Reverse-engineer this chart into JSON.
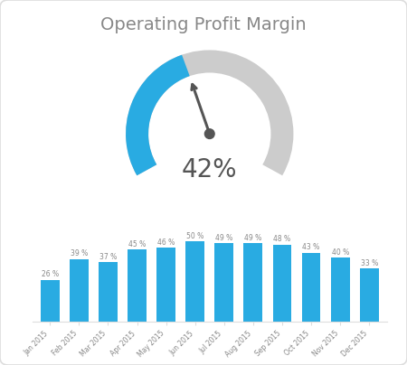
{
  "title": "Operating Profit Margin",
  "gauge_value": 42,
  "gauge_label": "42%",
  "gauge_color_filled": "#29ABE2",
  "gauge_color_empty": "#CCCCCC",
  "needle_color": "#555555",
  "background_color": "#FFFFFF",
  "border_color": "#DDDDDD",
  "bar_color": "#29ABE2",
  "bar_label_color": "#888888",
  "axis_label_color": "#888888",
  "title_color": "#888888",
  "categories": [
    "Jan 2015",
    "Feb 2015",
    "Mar 2015",
    "Apr 2015",
    "May 2015",
    "Jun 2015",
    "Jul 2015",
    "Aug 2015",
    "Sep 2015",
    "Oct 2015",
    "Nov 2015",
    "Dec 2015"
  ],
  "values": [
    26,
    39,
    37,
    45,
    46,
    50,
    49,
    49,
    48,
    43,
    40,
    33
  ]
}
